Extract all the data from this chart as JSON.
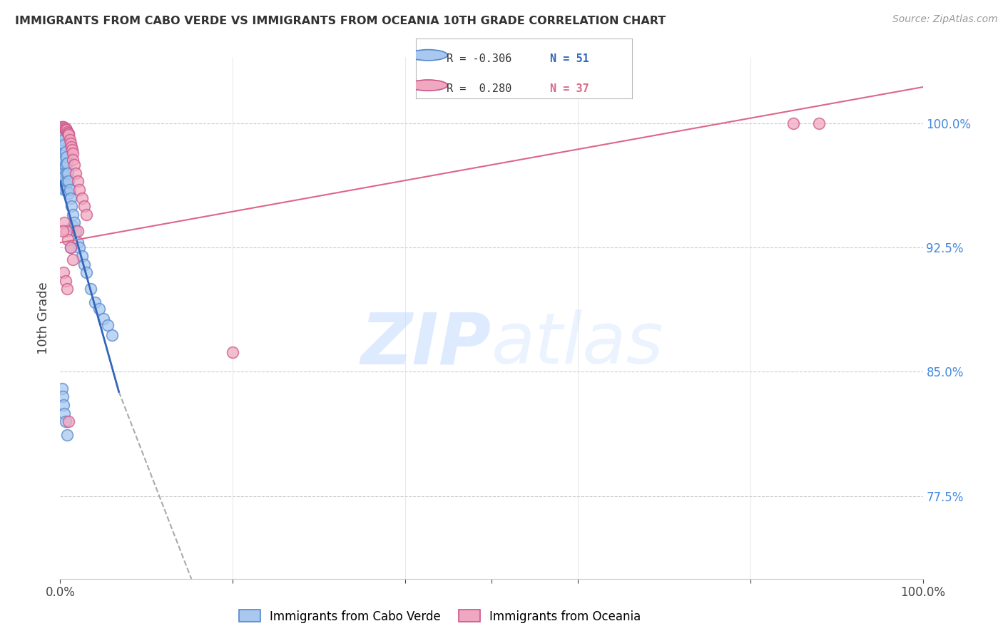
{
  "title": "IMMIGRANTS FROM CABO VERDE VS IMMIGRANTS FROM OCEANIA 10TH GRADE CORRELATION CHART",
  "source": "Source: ZipAtlas.com",
  "ylabel": "10th Grade",
  "legend_blue_r": "-0.306",
  "legend_blue_n": "51",
  "legend_pink_r": "0.280",
  "legend_pink_n": "37",
  "blue_color": "#A8C8F0",
  "blue_edge_color": "#5588CC",
  "pink_color": "#F0A8C0",
  "pink_edge_color": "#CC5588",
  "blue_line_color": "#3366BB",
  "pink_line_color": "#DD6688",
  "gray_dash_color": "#AAAAAA",
  "right_tick_color": "#4488DD",
  "xlim": [
    0.0,
    1.0
  ],
  "ylim": [
    0.725,
    1.04
  ],
  "right_yticks": [
    1.0,
    0.925,
    0.85,
    0.775
  ],
  "right_ytick_labels": [
    "100.0%",
    "92.5%",
    "85.0%",
    "77.5%"
  ],
  "blue_scatter_x": [
    0.001,
    0.002,
    0.002,
    0.002,
    0.003,
    0.003,
    0.003,
    0.004,
    0.004,
    0.004,
    0.004,
    0.005,
    0.005,
    0.005,
    0.005,
    0.006,
    0.006,
    0.006,
    0.007,
    0.007,
    0.007,
    0.008,
    0.008,
    0.009,
    0.01,
    0.01,
    0.011,
    0.012,
    0.013,
    0.015,
    0.015,
    0.016,
    0.018,
    0.02,
    0.022,
    0.025,
    0.028,
    0.03,
    0.035,
    0.04,
    0.045,
    0.05,
    0.055,
    0.06,
    0.002,
    0.003,
    0.004,
    0.005,
    0.006,
    0.008,
    0.012
  ],
  "blue_scatter_y": [
    0.998,
    0.995,
    0.988,
    0.975,
    0.993,
    0.985,
    0.972,
    0.99,
    0.982,
    0.97,
    0.965,
    0.987,
    0.978,
    0.968,
    0.96,
    0.983,
    0.975,
    0.963,
    0.98,
    0.97,
    0.96,
    0.976,
    0.965,
    0.97,
    0.965,
    0.958,
    0.96,
    0.955,
    0.95,
    0.945,
    0.938,
    0.94,
    0.935,
    0.928,
    0.925,
    0.92,
    0.915,
    0.91,
    0.9,
    0.892,
    0.888,
    0.882,
    0.878,
    0.872,
    0.84,
    0.835,
    0.83,
    0.825,
    0.82,
    0.812,
    0.925
  ],
  "pink_scatter_x": [
    0.003,
    0.004,
    0.005,
    0.006,
    0.006,
    0.007,
    0.008,
    0.009,
    0.01,
    0.01,
    0.011,
    0.012,
    0.013,
    0.014,
    0.015,
    0.015,
    0.016,
    0.018,
    0.02,
    0.022,
    0.025,
    0.028,
    0.03,
    0.005,
    0.007,
    0.009,
    0.012,
    0.015,
    0.2,
    0.004,
    0.006,
    0.008,
    0.01,
    0.85,
    0.88,
    0.003,
    0.02
  ],
  "pink_scatter_y": [
    0.998,
    0.998,
    0.997,
    0.997,
    0.996,
    0.996,
    0.995,
    0.994,
    0.994,
    0.993,
    0.99,
    0.988,
    0.986,
    0.984,
    0.982,
    0.978,
    0.975,
    0.97,
    0.965,
    0.96,
    0.955,
    0.95,
    0.945,
    0.94,
    0.935,
    0.93,
    0.925,
    0.918,
    0.862,
    0.91,
    0.905,
    0.9,
    0.82,
    1.0,
    1.0,
    0.935,
    0.935
  ],
  "blue_line_x": [
    0.0,
    0.068
  ],
  "blue_line_y": [
    0.965,
    0.838
  ],
  "gray_line_x": [
    0.068,
    0.55
  ],
  "gray_line_y": [
    0.838,
    0.19
  ],
  "pink_line_x": [
    0.0,
    1.0
  ],
  "pink_line_y": [
    0.928,
    1.022
  ]
}
